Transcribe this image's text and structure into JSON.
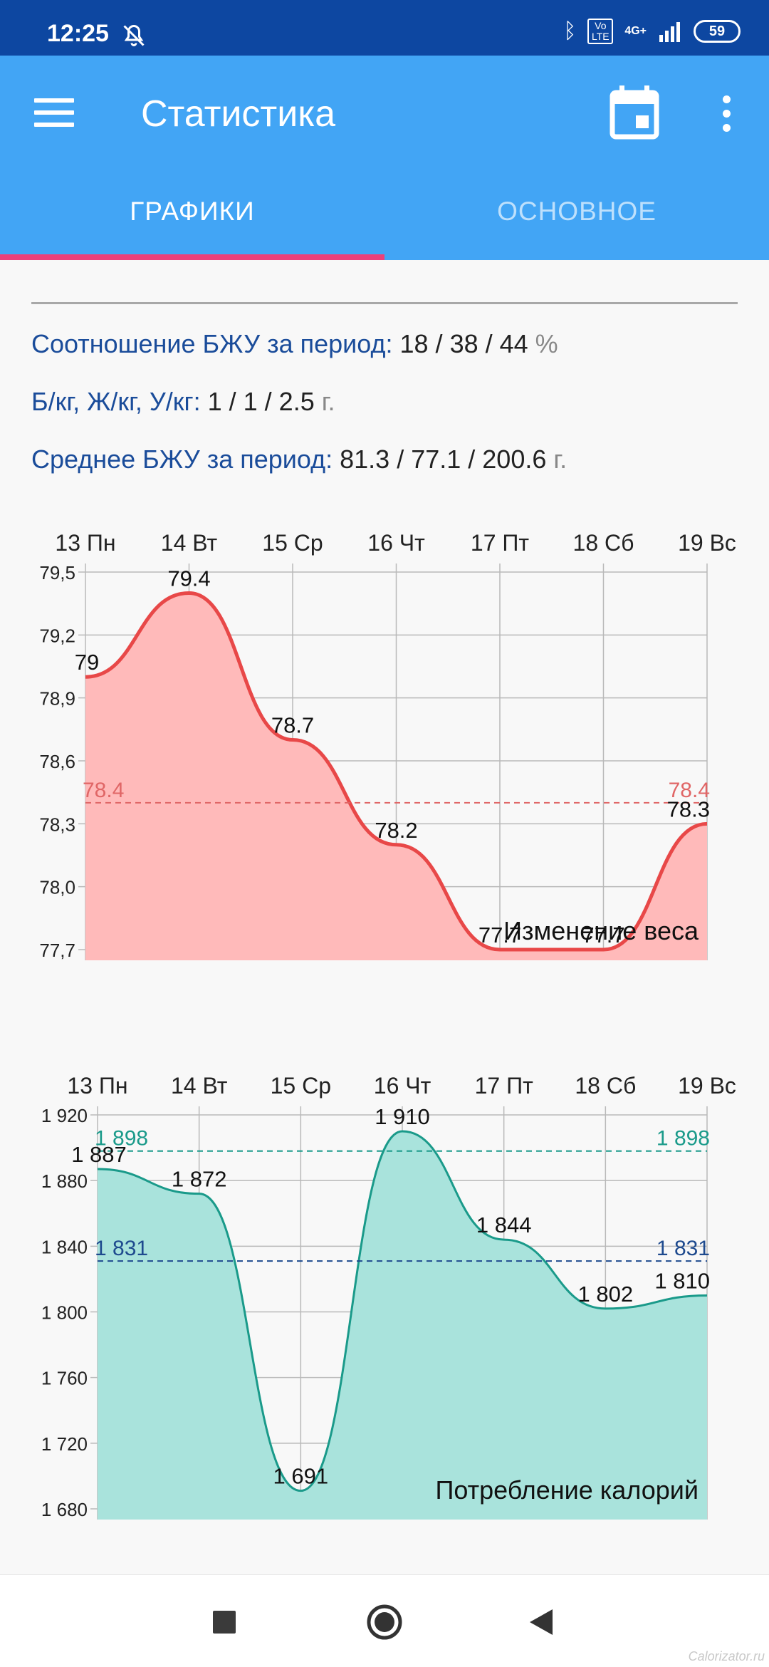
{
  "status_bar": {
    "time": "12:25",
    "network": "4G+",
    "volte": "Vo LTE",
    "battery": "59"
  },
  "app_bar": {
    "title": "Статистика",
    "menu_icon": "hamburger-menu-icon",
    "calendar_icon": "calendar-icon",
    "more_icon": "more-vert-icon",
    "color": "#42a5f5"
  },
  "tabs": [
    {
      "label": "ГРАФИКИ",
      "active": true
    },
    {
      "label": "ОСНОВНОЕ",
      "active": false
    }
  ],
  "stats": {
    "ratio_label": "Соотношение БЖУ за период:",
    "ratio_value": "18 / 38 / 44",
    "ratio_unit": "%",
    "perkg_label": "Б/кг, Ж/кг, У/кг:",
    "perkg_value": "1 / 1 / 2.5",
    "perkg_unit": "г.",
    "avg_label": "Среднее БЖУ за период:",
    "avg_value": "81.3 / 77.1 / 200.6",
    "avg_unit": "г."
  },
  "chart_data": [
    {
      "type": "area",
      "title": "Изменение веса",
      "categories": [
        "13 Пн",
        "14 Вт",
        "15 Ср",
        "16 Чт",
        "17 Пт",
        "18 Сб",
        "19 Вс"
      ],
      "values": [
        79,
        79.4,
        78.7,
        78.2,
        77.7,
        77.7,
        78.3
      ],
      "value_labels": [
        "79",
        "79.4",
        "78.7",
        "78.2",
        "77.7",
        "77.7",
        "78.3"
      ],
      "ylim": [
        77.7,
        79.5
      ],
      "yticks": [
        79.5,
        79.2,
        78.9,
        78.6,
        78.3,
        78.0,
        77.7
      ],
      "ytick_labels": [
        "79,5",
        "79,2",
        "78,9",
        "78,6",
        "78,3",
        "78,0",
        "77,7"
      ],
      "reference_lines": [
        {
          "value": 78.4,
          "label_left": "78.4",
          "label_right": "78.4",
          "color": "#e06666"
        }
      ],
      "line_color": "#e84848",
      "fill_color": "#ffbaba",
      "grid": true
    },
    {
      "type": "area",
      "title": "Потребление калорий",
      "categories": [
        "13 Пн",
        "14 Вт",
        "15 Ср",
        "16 Чт",
        "17 Пт",
        "18 Сб",
        "19 Вс"
      ],
      "values": [
        1887,
        1872,
        1691,
        1910,
        1844,
        1802,
        1810
      ],
      "value_labels": [
        "1 887",
        "1 872",
        "1 691",
        "1 910",
        "1 844",
        "1 802",
        "1 810"
      ],
      "ylim": [
        1680,
        1920
      ],
      "yticks": [
        1920,
        1880,
        1840,
        1800,
        1760,
        1720,
        1680
      ],
      "ytick_labels": [
        "1 920",
        "1 880",
        "1 840",
        "1 800",
        "1 760",
        "1 720",
        "1 680"
      ],
      "reference_lines": [
        {
          "value": 1898,
          "label_left": "1 898",
          "label_right": "1 898",
          "color": "#1a9a8a"
        },
        {
          "value": 1831,
          "label_left": "1 831",
          "label_right": "1 831",
          "color": "#1e4a8e"
        }
      ],
      "line_color": "#1a9a8a",
      "fill_color": "#a9e3dc",
      "grid": true
    }
  ],
  "watermark": "Calorizator.ru"
}
